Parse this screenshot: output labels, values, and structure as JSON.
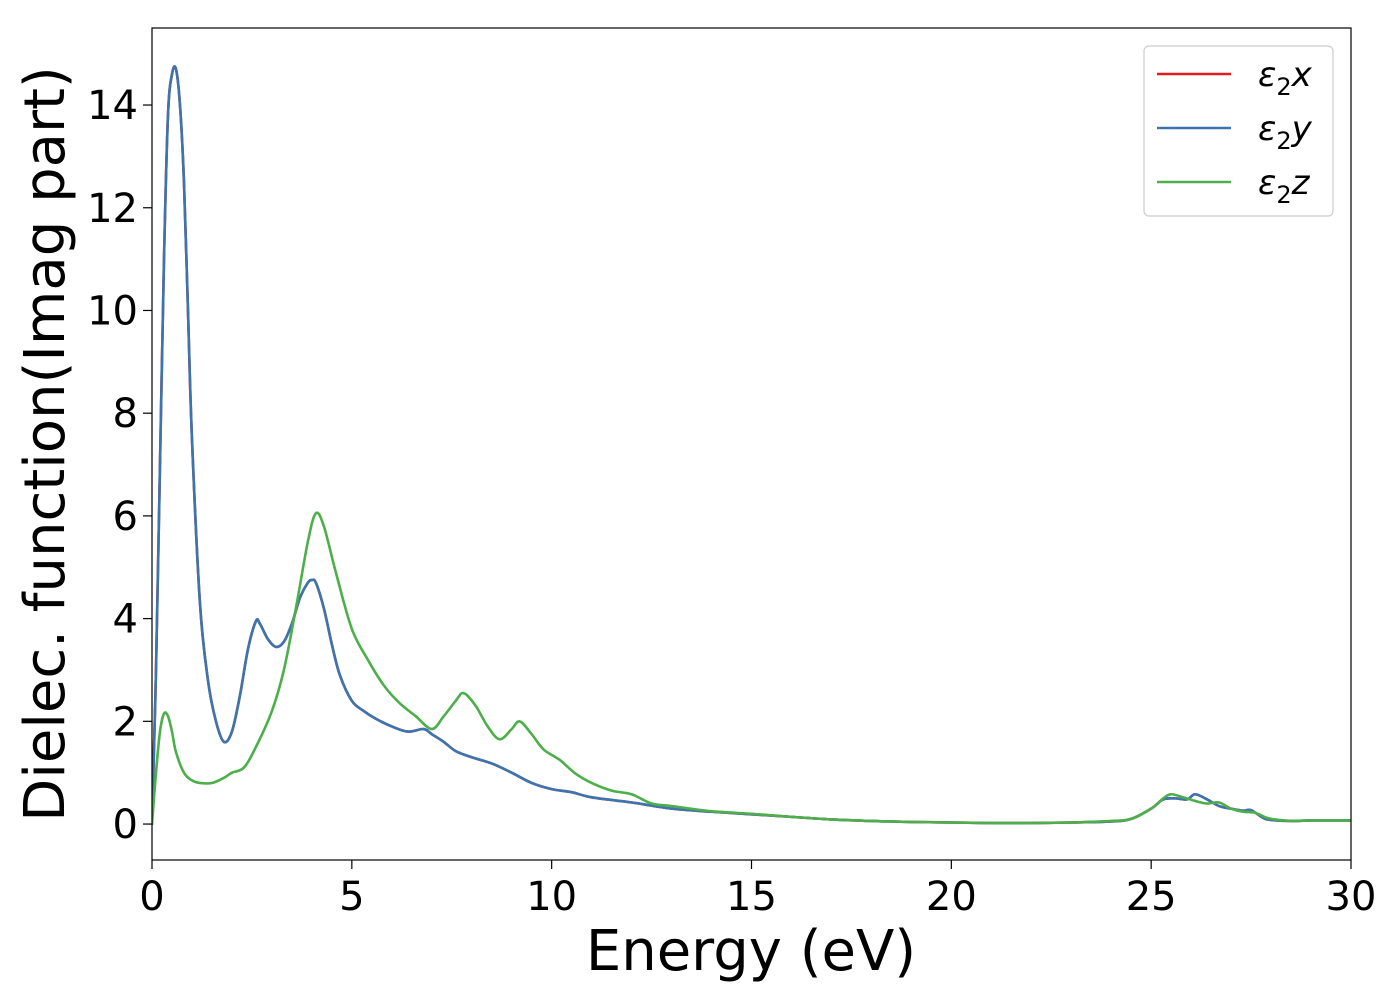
{
  "chart_data": {
    "type": "line",
    "title": "",
    "xlabel": "Energy (eV)",
    "ylabel": "Dielec. function(Imag part)",
    "xlim": [
      0,
      30
    ],
    "ylim": [
      -0.7,
      15.5
    ],
    "xticks": [
      0,
      5,
      10,
      15,
      20,
      25,
      30
    ],
    "yticks": [
      0,
      2,
      4,
      6,
      8,
      10,
      12,
      14
    ],
    "grid": false,
    "legend_position": "top-right",
    "series": [
      {
        "name": "ε2x",
        "legend_base": "ε",
        "legend_sub": "2",
        "legend_suffix": "x",
        "color": "#e41a1c",
        "x": [
          0,
          0.1,
          0.2,
          0.3,
          0.4,
          0.5,
          0.6,
          0.7,
          0.8,
          0.9,
          1.0,
          1.2,
          1.4,
          1.6,
          1.8,
          2.0,
          2.2,
          2.4,
          2.6,
          2.7,
          2.9,
          3.1,
          3.3,
          3.5,
          3.7,
          3.9,
          4.0,
          4.1,
          4.3,
          4.5,
          4.7,
          5.0,
          5.3,
          5.6,
          6.0,
          6.4,
          6.8,
          7.0,
          7.3,
          7.6,
          8.0,
          8.5,
          9.0,
          9.5,
          10.0,
          10.5,
          11.0,
          12.0,
          13.0,
          14.0,
          15.0,
          16.0,
          17.0,
          18.0,
          19.0,
          20.0,
          21.0,
          22.0,
          23.0,
          24.0,
          24.5,
          25.0,
          25.3,
          25.6,
          25.9,
          26.1,
          26.4,
          26.7,
          27.0,
          27.3,
          27.5,
          27.8,
          28.0,
          28.5,
          29.0,
          30.0
        ],
        "y": [
          0,
          3.0,
          7.0,
          11.0,
          13.8,
          14.6,
          14.7,
          14.0,
          12.5,
          10.0,
          7.5,
          4.3,
          2.8,
          2.0,
          1.6,
          1.8,
          2.5,
          3.4,
          3.95,
          3.9,
          3.6,
          3.45,
          3.55,
          3.9,
          4.4,
          4.7,
          4.75,
          4.7,
          4.2,
          3.5,
          2.9,
          2.4,
          2.2,
          2.05,
          1.9,
          1.8,
          1.85,
          1.75,
          1.6,
          1.42,
          1.3,
          1.18,
          1.0,
          0.8,
          0.68,
          0.62,
          0.52,
          0.42,
          0.3,
          0.24,
          0.19,
          0.14,
          0.09,
          0.06,
          0.04,
          0.03,
          0.02,
          0.02,
          0.03,
          0.05,
          0.1,
          0.3,
          0.48,
          0.5,
          0.48,
          0.58,
          0.48,
          0.35,
          0.3,
          0.26,
          0.27,
          0.12,
          0.08,
          0.06,
          0.07,
          0.07
        ]
      },
      {
        "name": "ε2y",
        "legend_base": "ε",
        "legend_sub": "2",
        "legend_suffix": "y",
        "color": "#3a75b0",
        "x": [
          0,
          0.1,
          0.2,
          0.3,
          0.4,
          0.5,
          0.6,
          0.7,
          0.8,
          0.9,
          1.0,
          1.2,
          1.4,
          1.6,
          1.8,
          2.0,
          2.2,
          2.4,
          2.6,
          2.7,
          2.9,
          3.1,
          3.3,
          3.5,
          3.7,
          3.9,
          4.0,
          4.1,
          4.3,
          4.5,
          4.7,
          5.0,
          5.3,
          5.6,
          6.0,
          6.4,
          6.8,
          7.0,
          7.3,
          7.6,
          8.0,
          8.5,
          9.0,
          9.5,
          10.0,
          10.5,
          11.0,
          12.0,
          13.0,
          14.0,
          15.0,
          16.0,
          17.0,
          18.0,
          19.0,
          20.0,
          21.0,
          22.0,
          23.0,
          24.0,
          24.5,
          25.0,
          25.3,
          25.6,
          25.9,
          26.1,
          26.4,
          26.7,
          27.0,
          27.3,
          27.5,
          27.8,
          28.0,
          28.5,
          29.0,
          30.0
        ],
        "y": [
          0,
          3.0,
          7.0,
          11.0,
          13.8,
          14.6,
          14.7,
          14.0,
          12.5,
          10.0,
          7.5,
          4.3,
          2.8,
          2.0,
          1.6,
          1.8,
          2.5,
          3.4,
          3.95,
          3.9,
          3.6,
          3.45,
          3.55,
          3.9,
          4.4,
          4.7,
          4.75,
          4.7,
          4.2,
          3.5,
          2.9,
          2.4,
          2.2,
          2.05,
          1.9,
          1.8,
          1.85,
          1.75,
          1.6,
          1.42,
          1.3,
          1.18,
          1.0,
          0.8,
          0.68,
          0.62,
          0.52,
          0.42,
          0.3,
          0.24,
          0.19,
          0.14,
          0.09,
          0.06,
          0.04,
          0.03,
          0.02,
          0.02,
          0.03,
          0.05,
          0.1,
          0.3,
          0.48,
          0.5,
          0.48,
          0.58,
          0.48,
          0.35,
          0.3,
          0.26,
          0.27,
          0.12,
          0.08,
          0.06,
          0.07,
          0.07
        ]
      },
      {
        "name": "ε2z",
        "legend_base": "ε",
        "legend_sub": "2",
        "legend_suffix": "z",
        "color": "#4daf4a",
        "x": [
          0,
          0.1,
          0.2,
          0.3,
          0.4,
          0.5,
          0.6,
          0.8,
          1.0,
          1.2,
          1.5,
          1.8,
          2.0,
          2.3,
          2.6,
          3.0,
          3.3,
          3.6,
          3.9,
          4.1,
          4.3,
          4.6,
          5.0,
          5.4,
          5.8,
          6.2,
          6.6,
          7.0,
          7.3,
          7.6,
          7.8,
          8.1,
          8.4,
          8.7,
          9.0,
          9.2,
          9.5,
          9.8,
          10.2,
          10.6,
          11.0,
          11.5,
          12.0,
          12.5,
          13.0,
          14.0,
          15.0,
          16.0,
          17.0,
          18.0,
          19.0,
          20.0,
          21.0,
          22.0,
          23.0,
          24.0,
          24.5,
          25.0,
          25.3,
          25.5,
          25.8,
          26.1,
          26.4,
          26.7,
          27.0,
          27.3,
          27.6,
          27.9,
          28.2,
          28.6,
          29.0,
          30.0
        ],
        "y": [
          0,
          1.0,
          1.8,
          2.15,
          2.1,
          1.8,
          1.4,
          1.0,
          0.85,
          0.8,
          0.8,
          0.9,
          1.0,
          1.1,
          1.5,
          2.2,
          3.0,
          4.2,
          5.5,
          6.05,
          5.8,
          4.9,
          3.8,
          3.2,
          2.7,
          2.35,
          2.1,
          1.85,
          2.1,
          2.4,
          2.55,
          2.3,
          1.9,
          1.65,
          1.85,
          2.0,
          1.75,
          1.45,
          1.25,
          0.98,
          0.8,
          0.65,
          0.58,
          0.4,
          0.35,
          0.25,
          0.2,
          0.14,
          0.09,
          0.06,
          0.04,
          0.03,
          0.02,
          0.02,
          0.03,
          0.06,
          0.1,
          0.3,
          0.5,
          0.58,
          0.52,
          0.45,
          0.4,
          0.42,
          0.3,
          0.24,
          0.22,
          0.12,
          0.08,
          0.06,
          0.07,
          0.07
        ]
      }
    ]
  }
}
